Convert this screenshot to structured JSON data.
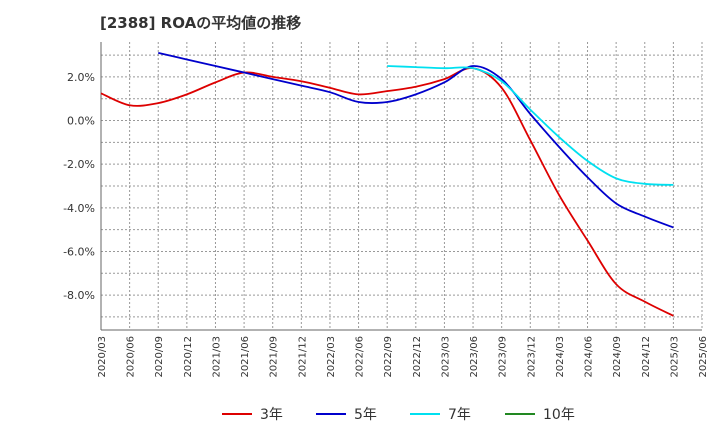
{
  "chart_data": {
    "type": "line",
    "title": "[2388]  ROAの平均値の推移",
    "xlabel": "",
    "ylabel": "",
    "ylim": [
      -9.6,
      3.6
    ],
    "yticks": [
      2,
      0,
      -2,
      -4,
      -6,
      -8
    ],
    "ytick_labels": [
      "2.0%",
      "0.0%",
      "-2.0%",
      "-4.0%",
      "-6.0%",
      "-8.0%"
    ],
    "grid": true,
    "legend": "bottom",
    "categories": [
      "2020/03",
      "2020/06",
      "2020/09",
      "2020/12",
      "2021/03",
      "2021/06",
      "2021/09",
      "2021/12",
      "2022/03",
      "2022/06",
      "2022/09",
      "2022/12",
      "2023/03",
      "2023/06",
      "2023/09",
      "2023/12",
      "2024/03",
      "2024/06",
      "2024/09",
      "2024/12",
      "2025/03",
      "2025/06"
    ],
    "series": [
      {
        "name": "3年",
        "color": "#dd0000",
        "values": [
          1.25,
          0.7,
          0.8,
          1.2,
          1.75,
          2.2,
          2.0,
          1.8,
          1.5,
          1.2,
          1.35,
          1.55,
          1.9,
          2.4,
          1.5,
          -0.9,
          -3.4,
          -5.5,
          -7.5,
          -8.3,
          -8.95,
          null
        ]
      },
      {
        "name": "5年",
        "color": "#0000cc",
        "values": [
          null,
          null,
          3.1,
          2.8,
          2.5,
          2.2,
          1.9,
          1.6,
          1.3,
          0.85,
          0.85,
          1.2,
          1.75,
          2.5,
          1.9,
          0.3,
          -1.2,
          -2.6,
          -3.8,
          -4.4,
          -4.9,
          null
        ]
      },
      {
        "name": "7年",
        "color": "#00e0f0",
        "values": [
          null,
          null,
          null,
          null,
          null,
          null,
          null,
          null,
          null,
          null,
          2.5,
          2.45,
          2.4,
          2.4,
          1.8,
          0.5,
          -0.75,
          -1.85,
          -2.65,
          -2.9,
          -2.95,
          null
        ]
      },
      {
        "name": "10年",
        "color": "#228822",
        "values": [
          null,
          null,
          null,
          null,
          null,
          null,
          null,
          null,
          null,
          null,
          null,
          null,
          null,
          null,
          null,
          null,
          null,
          null,
          null,
          null,
          null,
          null
        ]
      }
    ]
  }
}
